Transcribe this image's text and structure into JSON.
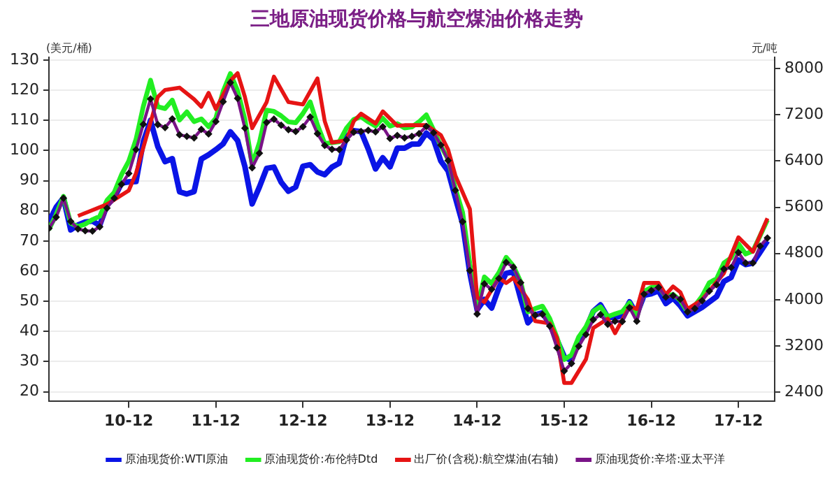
{
  "chart_data": {
    "type": "line",
    "title": "三地原油现货价格与航空煤油价格走势",
    "ylabel": "(美元/桶)",
    "y2label": "元/吨",
    "x": [
      "2010-01",
      "2010-02",
      "2010-03",
      "2010-04",
      "2010-05",
      "2010-06",
      "2010-07",
      "2010-08",
      "2010-09",
      "2010-10",
      "2010-11",
      "2010-12",
      "2011-01",
      "2011-02",
      "2011-03",
      "2011-04",
      "2011-05",
      "2011-06",
      "2011-07",
      "2011-08",
      "2011-09",
      "2011-10",
      "2011-11",
      "2011-12",
      "2012-01",
      "2012-02",
      "2012-03",
      "2012-04",
      "2012-05",
      "2012-06",
      "2012-07",
      "2012-08",
      "2012-09",
      "2012-10",
      "2012-11",
      "2012-12",
      "2013-01",
      "2013-02",
      "2013-03",
      "2013-04",
      "2013-05",
      "2013-06",
      "2013-07",
      "2013-08",
      "2013-09",
      "2013-10",
      "2013-11",
      "2013-12",
      "2014-01",
      "2014-02",
      "2014-03",
      "2014-04",
      "2014-05",
      "2014-06",
      "2014-07",
      "2014-08",
      "2014-09",
      "2014-10",
      "2014-11",
      "2014-12",
      "2015-01",
      "2015-02",
      "2015-03",
      "2015-04",
      "2015-05",
      "2015-06",
      "2015-07",
      "2015-08",
      "2015-09",
      "2015-10",
      "2015-11",
      "2015-12",
      "2016-01",
      "2016-02",
      "2016-03",
      "2016-04",
      "2016-05",
      "2016-06",
      "2016-07",
      "2016-08",
      "2016-09",
      "2016-10",
      "2016-11",
      "2016-12",
      "2017-01",
      "2017-02",
      "2017-03",
      "2017-04",
      "2017-05",
      "2017-06",
      "2017-07",
      "2017-08",
      "2017-09",
      "2017-10",
      "2017-11",
      "2017-12",
      "2018-01",
      "2018-02",
      "2018-03",
      "2018-04"
    ],
    "series": [
      {
        "name": "原油现货价:WTI原油",
        "color": "#0a14e6",
        "values": [
          76.4,
          81.2,
          84.3,
          73.7,
          75.3,
          76.3,
          76.6,
          75.2,
          81.9,
          84.3,
          89.2,
          89.6,
          89.7,
          102.9,
          110.0,
          101.3,
          96.3,
          97.3,
          86.3,
          85.6,
          86.4,
          97.2,
          98.6,
          100.3,
          102.2,
          106.2,
          103.3,
          94.7,
          82.3,
          87.9,
          94.1,
          94.5,
          89.5,
          86.5,
          87.9,
          94.8,
          95.3,
          92.9,
          92.0,
          94.5,
          95.8,
          104.6,
          106.6,
          106.3,
          100.5,
          93.9,
          97.6,
          94.6,
          100.8,
          100.8,
          102.1,
          102.2,
          105.8,
          103.6,
          96.5,
          93.2,
          84.4,
          75.8,
          59.3,
          47.2,
          50.6,
          47.8,
          54.5,
          59.3,
          59.8,
          50.9,
          42.9,
          45.5,
          46.2,
          42.4,
          37.2,
          31.7,
          30.3,
          37.5,
          40.8,
          46.7,
          48.8,
          44.7,
          44.7,
          45.2,
          49.8,
          45.7,
          52.0,
          52.5,
          53.5,
          49.3,
          51.1,
          48.5,
          45.2,
          46.6,
          48.0,
          49.8,
          51.6,
          56.6,
          57.9,
          63.7,
          62.2,
          62.7,
          66.3,
          70.0
        ]
      },
      {
        "name": "原油现货价:布伦特Dtd",
        "color": "#22ee22",
        "values": [
          73.8,
          78.8,
          84.8,
          75.9,
          74.8,
          75.6,
          77.1,
          78.2,
          83.5,
          86.1,
          92.0,
          96.5,
          103.7,
          114.6,
          123.3,
          114.5,
          113.9,
          116.7,
          110.1,
          112.8,
          109.6,
          110.5,
          107.9,
          110.7,
          119.6,
          125.5,
          119.8,
          110.3,
          95.2,
          102.6,
          113.4,
          113.0,
          111.5,
          109.5,
          109.2,
          112.3,
          116.1,
          108.5,
          102.3,
          102.6,
          102.9,
          107.4,
          110.3,
          111.2,
          109.5,
          108.1,
          110.7,
          108.1,
          108.9,
          107.5,
          107.8,
          109.5,
          111.8,
          106.8,
          101.6,
          97.1,
          87.4,
          79.4,
          62.3,
          47.8,
          58.1,
          55.9,
          59.5,
          64.6,
          61.7,
          56.5,
          46.5,
          47.6,
          48.4,
          44.3,
          38.0,
          30.7,
          32.2,
          38.2,
          41.6,
          46.7,
          48.2,
          44.9,
          45.8,
          46.6,
          49.5,
          44.7,
          53.3,
          54.6,
          54.9,
          51.6,
          52.3,
          50.3,
          46.4,
          48.5,
          51.7,
          56.2,
          57.5,
          62.7,
          64.4,
          69.1,
          65.7,
          66.7,
          71.8,
          77.0
        ]
      },
      {
        "name": "出厂价(含税):航空煤油(右轴)",
        "color": "#e61414",
        "axis": "y2",
        "x": [
          "2010-05",
          "2010-09",
          "2010-12",
          "2011-01",
          "2011-04",
          "2011-05",
          "2011-07",
          "2011-09",
          "2011-10",
          "2011-11",
          "2011-12",
          "2012-02",
          "2012-03",
          "2012-04",
          "2012-05",
          "2012-07",
          "2012-08",
          "2012-10",
          "2012-12",
          "2013-02",
          "2013-03",
          "2013-04",
          "2013-06",
          "2013-07",
          "2013-08",
          "2013-10",
          "2013-11",
          "2014-01",
          "2014-02",
          "2014-05",
          "2014-07",
          "2014-08",
          "2014-09",
          "2014-11",
          "2014-12",
          "2015-01",
          "2015-03",
          "2015-04",
          "2015-05",
          "2015-07",
          "2015-08",
          "2015-10",
          "2015-11",
          "2015-12",
          "2016-01",
          "2016-03",
          "2016-04",
          "2016-06",
          "2016-07",
          "2016-09",
          "2016-10",
          "2016-11",
          "2017-01",
          "2017-02",
          "2017-03",
          "2017-04",
          "2017-05",
          "2017-07",
          "2017-10",
          "2017-12",
          "2018-02",
          "2018-04"
        ],
        "values": [
          5450,
          5650,
          5890,
          6190,
          7510,
          7630,
          7670,
          7470,
          7340,
          7580,
          7300,
          7790,
          7920,
          7510,
          6970,
          7420,
          7860,
          7420,
          7380,
          7830,
          7090,
          6720,
          6760,
          7090,
          7220,
          7050,
          7260,
          7010,
          7020,
          7020,
          6850,
          6600,
          6150,
          5570,
          4040,
          3960,
          4380,
          4290,
          4380,
          4000,
          3630,
          3590,
          3340,
          2560,
          2560,
          2970,
          3510,
          3670,
          3420,
          3880,
          3840,
          4290,
          4290,
          4090,
          4230,
          4130,
          3840,
          4000,
          4460,
          5080,
          4830,
          5410
        ]
      },
      {
        "name": "原油现货价:辛塔:亚太平洋",
        "color": "#7a1487",
        "marker": "diamond",
        "values": [
          74.2,
          77.9,
          84.2,
          76.5,
          74.0,
          73.4,
          73.3,
          74.7,
          80.9,
          84.2,
          88.8,
          92.4,
          100.3,
          108.7,
          117.1,
          108.6,
          107.6,
          110.5,
          105.2,
          104.7,
          104.2,
          107.0,
          105.5,
          109.6,
          116.2,
          122.5,
          117.3,
          107.4,
          94.3,
          99.1,
          109.3,
          110.4,
          108.4,
          106.9,
          106.3,
          107.9,
          111.1,
          105.6,
          101.7,
          100.4,
          100.3,
          103.5,
          106.1,
          106.3,
          106.7,
          106.2,
          107.9,
          104.0,
          105.0,
          104.2,
          104.7,
          105.6,
          108.0,
          105.9,
          101.8,
          96.7,
          86.8,
          76.4,
          60.2,
          45.8,
          55.8,
          54.0,
          57.6,
          62.9,
          61.3,
          56.2,
          47.6,
          45.4,
          45.7,
          41.8,
          34.6,
          26.9,
          29.4,
          35.1,
          39.0,
          43.9,
          45.6,
          42.4,
          43.4,
          43.3,
          47.9,
          43.4,
          52.4,
          53.6,
          54.6,
          51.4,
          51.9,
          50.7,
          46.5,
          47.6,
          50.2,
          53.4,
          55.5,
          60.7,
          61.2,
          66.2,
          62.7,
          62.7,
          68.3,
          71.0
        ]
      }
    ],
    "xlim": [
      "2010-01",
      "2018-05"
    ],
    "xticks": [
      {
        "value": "2010-12",
        "label": "10-12"
      },
      {
        "value": "2011-12",
        "label": "11-12"
      },
      {
        "value": "2012-12",
        "label": "12-12"
      },
      {
        "value": "2013-12",
        "label": "13-12"
      },
      {
        "value": "2014-12",
        "label": "14-12"
      },
      {
        "value": "2015-12",
        "label": "15-12"
      },
      {
        "value": "2016-12",
        "label": "16-12"
      },
      {
        "value": "2017-12",
        "label": "17-12"
      }
    ],
    "ylim": [
      17,
      131
    ],
    "yticks": [
      20,
      30,
      40,
      50,
      60,
      70,
      80,
      90,
      100,
      110,
      120,
      130
    ],
    "y2lim": [
      2250,
      8200
    ],
    "y2ticks": [
      2400,
      3200,
      4000,
      4800,
      5600,
      6400,
      7200,
      8000
    ],
    "grid": "y",
    "legend": "bottom"
  }
}
